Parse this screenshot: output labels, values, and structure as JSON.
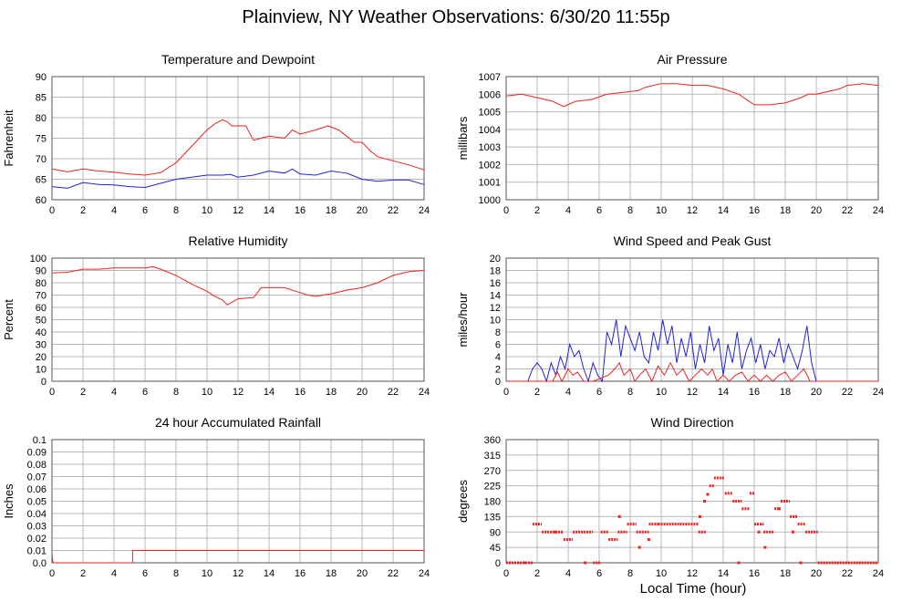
{
  "title": "Plainview, NY Weather Observations: 6/30/20 11:55p",
  "xaxis_label": "Local Time (hour)",
  "colors": {
    "red": "#ee2222",
    "blue": "#2222dd",
    "grid": "#b8b8b8"
  },
  "chart_data": [
    {
      "type": "line",
      "title": "Temperature and Dewpoint",
      "ylabel": "Fahrenheit",
      "xlim": [
        0,
        24
      ],
      "ylim": [
        60,
        90
      ],
      "xticks": [
        0,
        2,
        4,
        6,
        8,
        10,
        12,
        14,
        16,
        18,
        20,
        22,
        24
      ],
      "yticks": [
        60,
        65,
        70,
        75,
        80,
        85,
        90
      ],
      "series": [
        {
          "color": "red",
          "x": [
            0,
            1,
            2,
            3,
            4,
            5,
            6,
            7,
            8,
            8.5,
            9,
            9.5,
            10,
            10.5,
            11,
            11.3,
            11.6,
            12,
            12.5,
            13,
            13.5,
            14,
            15,
            15.5,
            16,
            17,
            17.8,
            18.5,
            19,
            19.5,
            20,
            20.5,
            21,
            22,
            23,
            24
          ],
          "y": [
            67.5,
            66.8,
            67.5,
            67,
            66.7,
            66.3,
            66,
            66.6,
            69,
            71,
            73,
            75,
            77,
            78.5,
            79.5,
            79,
            78,
            78,
            78,
            74.5,
            75,
            75.5,
            75,
            77,
            76,
            77,
            78,
            77,
            75.5,
            74,
            74,
            72,
            70.5,
            69.5,
            68.5,
            67.3
          ]
        },
        {
          "color": "blue",
          "x": [
            0,
            1,
            2,
            3,
            4,
            5,
            6,
            7,
            8,
            9,
            10,
            11,
            11.5,
            12,
            13,
            14,
            15,
            15.5,
            16,
            17,
            18,
            19,
            20,
            21,
            22,
            23,
            24
          ],
          "y": [
            63.2,
            62.8,
            64.2,
            63.7,
            63.6,
            63.2,
            63,
            64,
            65,
            65.5,
            66,
            66,
            66.2,
            65.5,
            66,
            67,
            66.5,
            67.5,
            66.3,
            66,
            67,
            66.5,
            65,
            64.5,
            64.8,
            64.8,
            63.7
          ]
        }
      ]
    },
    {
      "type": "line",
      "title": "Air Pressure",
      "ylabel": "millibars",
      "xlim": [
        0,
        24
      ],
      "ylim": [
        1000,
        1007
      ],
      "xticks": [
        0,
        2,
        4,
        6,
        8,
        10,
        12,
        14,
        16,
        18,
        20,
        22,
        24
      ],
      "yticks": [
        1000,
        1001,
        1002,
        1003,
        1004,
        1005,
        1006,
        1007
      ],
      "series": [
        {
          "color": "red",
          "x": [
            0,
            1,
            2,
            3,
            3.7,
            4.5,
            5.5,
            6.5,
            7.5,
            8.5,
            9,
            10,
            11,
            12,
            13,
            14,
            15,
            16,
            17,
            18,
            19,
            19.5,
            20,
            20.5,
            21,
            21.5,
            22,
            23,
            24
          ],
          "y": [
            1005.9,
            1006,
            1005.8,
            1005.6,
            1005.3,
            1005.6,
            1005.7,
            1006,
            1006.1,
            1006.2,
            1006.4,
            1006.6,
            1006.6,
            1006.5,
            1006.5,
            1006.3,
            1006,
            1005.4,
            1005.4,
            1005.5,
            1005.8,
            1006,
            1006,
            1006.1,
            1006.2,
            1006.3,
            1006.5,
            1006.6,
            1006.5
          ]
        }
      ]
    },
    {
      "type": "line",
      "title": "Relative Humidity",
      "ylabel": "Percent",
      "xlim": [
        0,
        24
      ],
      "ylim": [
        0,
        100
      ],
      "xticks": [
        0,
        2,
        4,
        6,
        8,
        10,
        12,
        14,
        16,
        18,
        20,
        22,
        24
      ],
      "yticks": [
        0,
        10,
        20,
        30,
        40,
        50,
        60,
        70,
        80,
        90,
        100
      ],
      "series": [
        {
          "color": "red",
          "x": [
            0,
            1,
            2,
            3,
            4,
            5,
            6,
            6.5,
            7,
            8,
            9,
            10,
            10.5,
            11,
            11.3,
            12,
            13,
            13.5,
            14,
            15,
            16,
            16.5,
            17,
            18,
            19,
            20,
            21,
            22,
            23,
            24
          ],
          "y": [
            88,
            88.5,
            91,
            91,
            92,
            92,
            92,
            93,
            91,
            86,
            79,
            73,
            69,
            66,
            62,
            67,
            68,
            76,
            76,
            76,
            72,
            70,
            69,
            71,
            74,
            76,
            80,
            86,
            89,
            90
          ]
        }
      ]
    },
    {
      "type": "line",
      "title": "Wind Speed and Peak Gust",
      "ylabel": "miles/hour",
      "xlim": [
        0,
        24
      ],
      "ylim": [
        0,
        20
      ],
      "xticks": [
        0,
        2,
        4,
        6,
        8,
        10,
        12,
        14,
        16,
        18,
        20,
        22,
        24
      ],
      "yticks": [
        0,
        2,
        4,
        6,
        8,
        10,
        12,
        14,
        16,
        18,
        20
      ],
      "series": [
        {
          "color": "blue",
          "x": [
            0,
            1.4,
            1.7,
            2,
            2.3,
            2.6,
            2.9,
            3.2,
            3.5,
            3.8,
            4.1,
            4.4,
            4.7,
            5,
            5.3,
            5.6,
            5.9,
            6.2,
            6.5,
            6.8,
            7.1,
            7.4,
            7.7,
            8,
            8.3,
            8.6,
            8.9,
            9.2,
            9.5,
            9.8,
            10.1,
            10.4,
            10.7,
            11,
            11.3,
            11.6,
            11.9,
            12.2,
            12.5,
            12.8,
            13.1,
            13.4,
            13.7,
            14,
            14.3,
            14.6,
            14.9,
            15.2,
            15.5,
            15.8,
            16.1,
            16.4,
            16.7,
            17,
            17.3,
            17.6,
            17.9,
            18.2,
            18.5,
            18.8,
            19.1,
            19.4,
            19.7,
            20,
            24
          ],
          "y": [
            0,
            0,
            2,
            3,
            2,
            0,
            3,
            1,
            4,
            2,
            6,
            4,
            5,
            2,
            0,
            3,
            1,
            0,
            8,
            6,
            10,
            4,
            9,
            7,
            5,
            8,
            4,
            3,
            8,
            5,
            10,
            6,
            9,
            3,
            7,
            4,
            8,
            2,
            6,
            3,
            9,
            5,
            7,
            1,
            6,
            3,
            8,
            2,
            5,
            7,
            3,
            6,
            2,
            5,
            4,
            7,
            3,
            6,
            4,
            2,
            5,
            9,
            3,
            0,
            0
          ]
        },
        {
          "color": "red",
          "x": [
            0,
            3,
            3.3,
            3.6,
            4,
            4.3,
            4.6,
            5,
            5.6,
            6.6,
            7,
            7.3,
            7.6,
            8,
            8.3,
            8.6,
            9,
            9.4,
            9.8,
            10.2,
            10.6,
            11,
            11.4,
            11.8,
            12.2,
            12.6,
            13,
            13.3,
            13.6,
            14,
            14.4,
            14.8,
            15.2,
            15.6,
            16,
            16.4,
            16.8,
            17.2,
            17.6,
            18,
            18.4,
            18.8,
            19.2,
            19.6,
            20,
            24
          ],
          "y": [
            0,
            0,
            1.5,
            0,
            2,
            1,
            1.5,
            0,
            0,
            1,
            2,
            3,
            1,
            2,
            0,
            1,
            2,
            0,
            2.5,
            1,
            3,
            1,
            2,
            0,
            1,
            2,
            1,
            2,
            0,
            1,
            0,
            1,
            1.5,
            0,
            1,
            0,
            1,
            0,
            1,
            1.5,
            0,
            1,
            2,
            0,
            0,
            0
          ]
        }
      ]
    },
    {
      "type": "line",
      "title": "24 hour Accumulated Rainfall",
      "ylabel": "Inches",
      "xlim": [
        0,
        24
      ],
      "ylim": [
        0,
        0.1
      ],
      "xticks": [
        0,
        2,
        4,
        6,
        8,
        10,
        12,
        14,
        16,
        18,
        20,
        22,
        24
      ],
      "yticks": [
        "0.0",
        "0.01",
        "0.02",
        "0.03",
        "0.04",
        "0.05",
        "0.06",
        "0.07",
        "0.08",
        "0.09",
        "0.1"
      ],
      "series": [
        {
          "color": "red",
          "x": [
            0,
            0.05,
            0.1,
            5.2,
            5.2,
            24
          ],
          "y": [
            0.007,
            0.001,
            0,
            0,
            0.01,
            0.01
          ]
        }
      ]
    },
    {
      "type": "scatter",
      "title": "Wind Direction",
      "ylabel": "degrees",
      "xlim": [
        0,
        24
      ],
      "ylim": [
        0,
        360
      ],
      "xticks": [
        0,
        2,
        4,
        6,
        8,
        10,
        12,
        14,
        16,
        18,
        20,
        22,
        24
      ],
      "yticks": [
        0,
        45,
        90,
        135,
        180,
        225,
        270,
        315,
        360
      ],
      "series": [
        {
          "color": "red",
          "segments": [
            [
              0,
              1.7,
              0
            ],
            [
              1.7,
              2.3,
              113
            ],
            [
              2.3,
              3.7,
              90
            ],
            [
              3.7,
              4.3,
              68
            ],
            [
              4.3,
              5.6,
              90
            ],
            [
              5.6,
              6.1,
              0
            ],
            [
              6.1,
              6.6,
              90
            ],
            [
              6.6,
              7.2,
              68
            ],
            [
              7.2,
              7.8,
              90
            ],
            [
              7.8,
              8.4,
              113
            ],
            [
              8.4,
              9.2,
              90
            ],
            [
              9.2,
              9.8,
              113
            ],
            [
              9.8,
              11.2,
              113
            ],
            [
              11.2,
              12.4,
              113
            ],
            [
              12.4,
              12.9,
              90
            ],
            [
              13.1,
              13.4,
              225
            ],
            [
              13.4,
              14.1,
              248
            ],
            [
              14.1,
              14.6,
              203
            ],
            [
              14.6,
              15.2,
              180
            ],
            [
              15.2,
              15.7,
              158
            ],
            [
              15.7,
              16,
              203
            ],
            [
              16,
              16.6,
              113
            ],
            [
              16.6,
              17.3,
              90
            ],
            [
              17.3,
              17.7,
              158
            ],
            [
              17.7,
              18.3,
              180
            ],
            [
              18.3,
              18.8,
              135
            ],
            [
              18.8,
              19.3,
              113
            ],
            [
              19.3,
              20.1,
              90
            ],
            [
              20.1,
              24,
              0
            ]
          ],
          "points": [
            [
              1.2,
              0
            ],
            [
              3.2,
              90
            ],
            [
              5.1,
              0
            ],
            [
              7.3,
              135
            ],
            [
              8.6,
              45
            ],
            [
              9.2,
              68
            ],
            [
              12.5,
              135
            ],
            [
              12.8,
              180
            ],
            [
              13,
              200
            ],
            [
              16.7,
              45
            ],
            [
              17.6,
              158
            ],
            [
              18.5,
              90
            ],
            [
              19,
              0
            ],
            [
              15,
              0
            ],
            [
              16.3,
              90
            ]
          ]
        }
      ]
    }
  ]
}
